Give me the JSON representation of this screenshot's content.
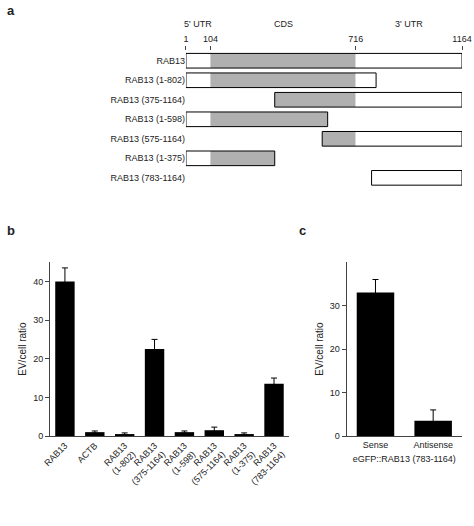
{
  "chart_data": [
    {
      "type": "bar",
      "orientation": "horizontal",
      "title": "a",
      "categories": [
        "RAB13",
        "RAB13 (1-802)",
        "RAB13 (375-1164)",
        "RAB13 (1-598)",
        "RAB13 (575-1164)",
        "RAB13 (1-375)",
        "RAB13 (783-1164)"
      ],
      "start": [
        1,
        1,
        375,
        1,
        575,
        1,
        783
      ],
      "end": [
        1164,
        802,
        1164,
        598,
        1164,
        375,
        1164
      ],
      "regions": [
        {
          "label": "5' UTR",
          "start": 1,
          "end": 104,
          "color": "#ffffff"
        },
        {
          "label": "CDS",
          "start": 104,
          "end": 716,
          "color": "#b0b0b0"
        },
        {
          "label": "3' UTR",
          "start": 716,
          "end": 1164,
          "color": "#ffffff"
        }
      ],
      "xlim": [
        1,
        1164
      ],
      "xticks": [
        1,
        104,
        716,
        1164
      ],
      "grid": false
    },
    {
      "type": "bar",
      "title": "b",
      "categories": [
        "RAB13",
        "ACTB",
        "RAB13 (1-802)",
        "RAB13 (375-1164)",
        "RAB13 (1-598)",
        "RAB13 (575-1164)",
        "RAB13 (1-375)",
        "RAB13 (783-1164)"
      ],
      "values": [
        40.0,
        1.0,
        0.5,
        22.5,
        1.0,
        1.5,
        0.5,
        13.5
      ],
      "errors": [
        3.5,
        0.3,
        0.3,
        2.5,
        0.3,
        0.8,
        0.3,
        1.5
      ],
      "color": "#000000",
      "ylabel": "EV/cell ratio",
      "ylim": [
        0,
        45
      ],
      "yticks": [
        0,
        10,
        20,
        30,
        40
      ],
      "grid": false
    },
    {
      "type": "bar",
      "title": "c",
      "categories": [
        "Sense",
        "Antisense"
      ],
      "values": [
        33.0,
        3.5
      ],
      "errors": [
        3.0,
        2.5
      ],
      "color": "#000000",
      "xlabel": "eGFP::RAB13 (783-1164)",
      "ylabel": "EV/cell ratio",
      "ylim": [
        0,
        40
      ],
      "yticks": [
        0,
        10,
        20,
        30
      ],
      "grid": false
    }
  ]
}
